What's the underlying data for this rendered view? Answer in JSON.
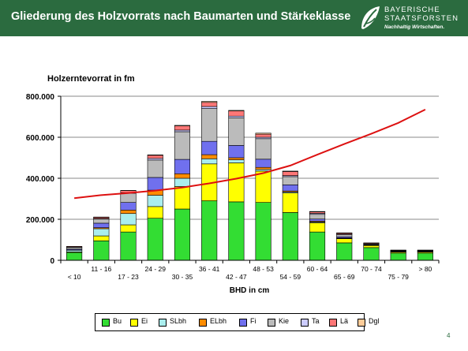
{
  "header": {
    "title": "Gliederung des Holzvorrats nach Baumarten und Stärkeklasse",
    "background_color": "#2b6b3f",
    "logo": {
      "line1": "BAYERISCHE",
      "line2": "STAATSFORSTEN",
      "slogan": "Nachhaltig Wirtschaften.",
      "icon": "leaf-icon"
    }
  },
  "page_number": "4",
  "chart_data": {
    "type": "bar",
    "stacked": true,
    "title": "Holzerntevorrat in fm",
    "xlabel": "BHD in cm",
    "ylabel": "",
    "ylim": [
      0,
      800000
    ],
    "yticks": [
      0,
      200000,
      400000,
      600000,
      800000
    ],
    "ytick_labels": [
      "0",
      "200.000",
      "400.000",
      "600.000",
      "800.000"
    ],
    "grid": true,
    "legend_position": "bottom",
    "categories": [
      "< 10",
      "11 - 16",
      "17 - 23",
      "24 - 29",
      "30 - 35",
      "36 - 41",
      "42 - 47",
      "48 - 53",
      "54 - 59",
      "60 - 64",
      "65 - 69",
      "70 - 74",
      "75 - 79",
      "> 80"
    ],
    "series": [
      {
        "name": "Bu",
        "color": "#33dd33",
        "values": [
          38000,
          95000,
          138000,
          205000,
          250000,
          290000,
          285000,
          282000,
          233000,
          138000,
          85000,
          62000,
          35000,
          35000
        ]
      },
      {
        "name": "Ei",
        "color": "#ffff00",
        "values": [
          3000,
          24000,
          35000,
          57000,
          110000,
          180000,
          190000,
          153000,
          95000,
          45000,
          20000,
          10000,
          5000,
          5000
        ]
      },
      {
        "name": "SLbh",
        "color": "#aaeeee",
        "values": [
          8000,
          35000,
          55000,
          55000,
          40000,
          25000,
          15000,
          8000,
          5000,
          4000,
          2000,
          1000,
          1000,
          2000
        ]
      },
      {
        "name": "ELbh",
        "color": "#ff8c00",
        "values": [
          2000,
          5000,
          17000,
          25000,
          22000,
          20000,
          10000,
          10000,
          5000,
          4000,
          2000,
          1000,
          1000,
          1000
        ]
      },
      {
        "name": "Fi",
        "color": "#7070ee",
        "values": [
          4000,
          22000,
          37000,
          62000,
          70000,
          65000,
          60000,
          40000,
          30000,
          10000,
          6000,
          3000,
          2000,
          1000
        ]
      },
      {
        "name": "Kie",
        "color": "#bbbbbb",
        "values": [
          8000,
          20000,
          45000,
          85000,
          135000,
          160000,
          135000,
          100000,
          40000,
          23000,
          10000,
          3000,
          2000,
          2000
        ]
      },
      {
        "name": "Ta",
        "color": "#ccccff",
        "values": [
          2000,
          3000,
          3000,
          8000,
          8000,
          10000,
          8000,
          7000,
          5000,
          5000,
          3000,
          2000,
          1000,
          1000
        ]
      },
      {
        "name": "Lä",
        "color": "#ff7777",
        "values": [
          3000,
          6000,
          10000,
          15000,
          20000,
          20000,
          25000,
          15000,
          20000,
          7000,
          5000,
          3000,
          2000,
          2000
        ]
      },
      {
        "name": "Dgl",
        "color": "#ffcc99",
        "values": [
          0,
          1000,
          1000,
          2000,
          3000,
          5000,
          3000,
          5000,
          2000,
          2000,
          1000,
          0,
          1000,
          1000
        ]
      }
    ],
    "trend_line": {
      "color": "#dd1111",
      "values": [
        303000,
        318000,
        328000,
        340000,
        355000,
        375000,
        398000,
        425000,
        462000,
        515000,
        567000,
        617000,
        670000,
        735000
      ]
    }
  }
}
